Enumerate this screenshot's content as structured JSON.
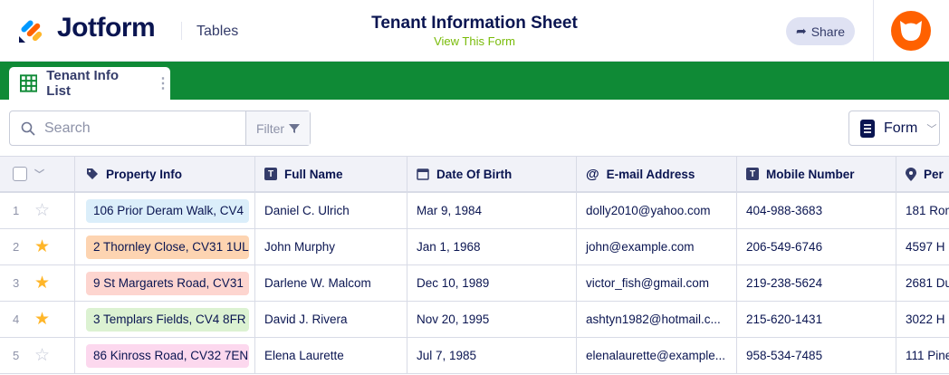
{
  "header": {
    "brand": "Jotform",
    "product": "Tables",
    "form_title": "Tenant Information Sheet",
    "view_form": "View This Form",
    "share_label": "Share",
    "accent": "#0f8a36"
  },
  "tab": {
    "label": "Tenant Info List"
  },
  "toolbar": {
    "search_placeholder": "Search",
    "filter_label": "Filter",
    "form_label": "Form"
  },
  "columns": [
    {
      "label": "Property Info",
      "icon": "tag-icon"
    },
    {
      "label": "Full Name",
      "icon": "text-icon"
    },
    {
      "label": "Date Of Birth",
      "icon": "calendar-icon"
    },
    {
      "label": "E-mail Address",
      "icon": "at-icon"
    },
    {
      "label": "Mobile Number",
      "icon": "text-icon"
    },
    {
      "label": "Per",
      "icon": "location-pin-icon"
    }
  ],
  "rows": [
    {
      "n": "1",
      "starred": false,
      "property": "106 Prior Deram Walk, CV4",
      "color": "#dbeefa",
      "name": "Daniel C. Ulrich",
      "dob": "Mar 9, 1984",
      "email": "dolly2010@yahoo.com",
      "mobile": "404-988-3683",
      "per": "181 Rom"
    },
    {
      "n": "2",
      "starred": true,
      "property": "2 Thornley Close, CV31 1UL",
      "color": "#fdd4b1",
      "name": "John Murphy",
      "dob": "Jan 1, 1968",
      "email": "john@example.com",
      "mobile": "206-549-6746",
      "per": "4597 H"
    },
    {
      "n": "3",
      "starred": true,
      "property": "9 St Margarets Road, CV31",
      "color": "#fdd5cf",
      "name": "Darlene W. Malcom",
      "dob": "Dec 10, 1989",
      "email": "victor_fish@gmail.com",
      "mobile": "219-238-5624",
      "per": "2681 Du"
    },
    {
      "n": "4",
      "starred": true,
      "property": "3 Templars Fields, CV4 8FR",
      "color": "#dcf2d2",
      "name": "David J. Rivera",
      "dob": "Nov 20, 1995",
      "email": "ashtyn1982@hotmail.c...",
      "mobile": "215-620-1431",
      "per": "3022 H"
    },
    {
      "n": "5",
      "starred": false,
      "property": "86 Kinross Road, CV32 7EN",
      "color": "#fcd8ee",
      "name": "Elena Laurette",
      "dob": "Jul 7, 1985",
      "email": "elenalaurette@example...",
      "mobile": "958-534-7485",
      "per": "111 Pine"
    }
  ]
}
